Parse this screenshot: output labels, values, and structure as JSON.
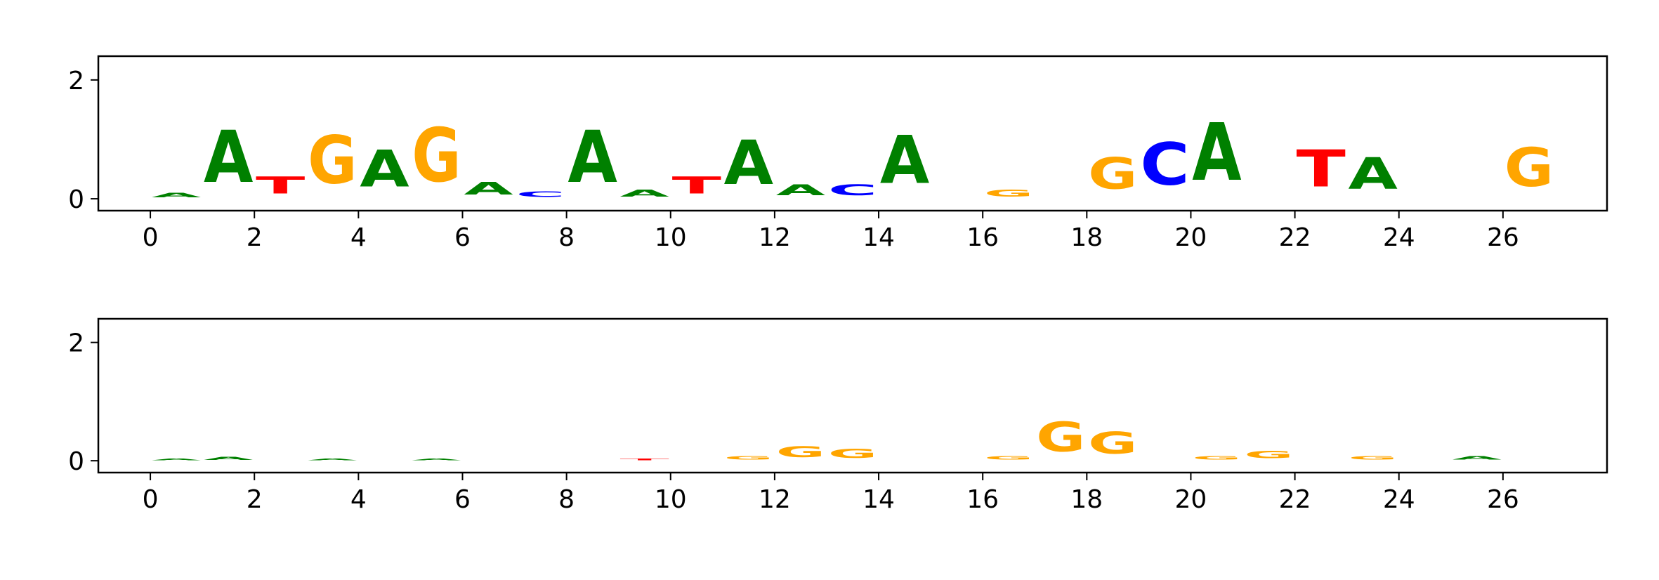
{
  "chart_data": [
    {
      "type": "sequence-logo",
      "title": "",
      "xlabel": "",
      "ylabel": "",
      "ylim": [
        -0.2,
        2.4
      ],
      "xlim": [
        -1,
        28
      ],
      "xticks": [
        "0",
        "2",
        "4",
        "6",
        "8",
        "10",
        "12",
        "14",
        "16",
        "18",
        "20",
        "22",
        "24",
        "26"
      ],
      "yticks": [
        "0",
        "2"
      ],
      "positions": [
        {
          "x": 0.5,
          "letters": [
            {
              "base": "A",
              "height": 0.12
            }
          ]
        },
        {
          "x": 1.5,
          "letters": [
            {
              "base": "A",
              "height": 1.4
            }
          ]
        },
        {
          "x": 2.5,
          "letters": [
            {
              "base": "T",
              "height": 0.45
            }
          ]
        },
        {
          "x": 3.5,
          "letters": [
            {
              "base": "G",
              "height": 1.3
            }
          ]
        },
        {
          "x": 4.5,
          "letters": [
            {
              "base": "A",
              "height": 1.0
            }
          ]
        },
        {
          "x": 5.5,
          "letters": [
            {
              "base": "G",
              "height": 1.45
            }
          ]
        },
        {
          "x": 6.5,
          "letters": [
            {
              "base": "A",
              "height": 0.35
            }
          ]
        },
        {
          "x": 7.5,
          "letters": [
            {
              "base": "C",
              "height": 0.15
            }
          ]
        },
        {
          "x": 8.5,
          "letters": [
            {
              "base": "A",
              "height": 1.4
            }
          ]
        },
        {
          "x": 9.5,
          "letters": [
            {
              "base": "A",
              "height": 0.18
            }
          ]
        },
        {
          "x": 10.5,
          "letters": [
            {
              "base": "T",
              "height": 0.45
            }
          ]
        },
        {
          "x": 11.5,
          "letters": [
            {
              "base": "A",
              "height": 1.2
            }
          ]
        },
        {
          "x": 12.5,
          "letters": [
            {
              "base": "A",
              "height": 0.3
            }
          ]
        },
        {
          "x": 13.5,
          "letters": [
            {
              "base": "C",
              "height": 0.3
            }
          ]
        },
        {
          "x": 14.5,
          "letters": [
            {
              "base": "A",
              "height": 1.3
            }
          ]
        },
        {
          "x": 16.5,
          "letters": [
            {
              "base": "G",
              "height": 0.18
            }
          ]
        },
        {
          "x": 18.5,
          "letters": [
            {
              "base": "G",
              "height": 0.85
            }
          ]
        },
        {
          "x": 19.5,
          "letters": [
            {
              "base": "C",
              "height": 1.15
            }
          ]
        },
        {
          "x": 20.5,
          "letters": [
            {
              "base": "A",
              "height": 1.55
            }
          ]
        },
        {
          "x": 22.5,
          "letters": [
            {
              "base": "T",
              "height": 1.0
            }
          ]
        },
        {
          "x": 23.5,
          "letters": [
            {
              "base": "A",
              "height": 0.85
            }
          ]
        },
        {
          "x": 26.5,
          "letters": [
            {
              "base": "G",
              "height": 1.05
            }
          ]
        }
      ]
    },
    {
      "type": "sequence-logo",
      "title": "",
      "xlabel": "",
      "ylabel": "",
      "ylim": [
        -0.2,
        2.4
      ],
      "xlim": [
        -1,
        28
      ],
      "xticks": [
        "0",
        "2",
        "4",
        "6",
        "8",
        "10",
        "12",
        "14",
        "16",
        "18",
        "20",
        "22",
        "24",
        "26"
      ],
      "yticks": [
        "0",
        "2"
      ],
      "positions": [
        {
          "x": 0.5,
          "letters": [
            {
              "base": "A",
              "height": 0.05
            }
          ]
        },
        {
          "x": 1.5,
          "letters": [
            {
              "base": "A",
              "height": 0.08
            }
          ]
        },
        {
          "x": 3.5,
          "letters": [
            {
              "base": "A",
              "height": 0.05
            }
          ]
        },
        {
          "x": 5.5,
          "letters": [
            {
              "base": "A",
              "height": 0.05
            }
          ]
        },
        {
          "x": 9.5,
          "letters": [
            {
              "base": "T",
              "height": 0.05
            }
          ]
        },
        {
          "x": 11.5,
          "letters": [
            {
              "base": "G",
              "height": 0.1
            }
          ]
        },
        {
          "x": 12.5,
          "letters": [
            {
              "base": "G",
              "height": 0.3
            }
          ]
        },
        {
          "x": 13.5,
          "letters": [
            {
              "base": "G",
              "height": 0.25
            }
          ]
        },
        {
          "x": 16.5,
          "letters": [
            {
              "base": "G",
              "height": 0.1
            }
          ]
        },
        {
          "x": 17.5,
          "letters": [
            {
              "base": "G",
              "height": 0.8
            }
          ]
        },
        {
          "x": 18.5,
          "letters": [
            {
              "base": "G",
              "height": 0.6
            }
          ]
        },
        {
          "x": 20.5,
          "letters": [
            {
              "base": "G",
              "height": 0.1
            }
          ]
        },
        {
          "x": 21.5,
          "letters": [
            {
              "base": "G",
              "height": 0.2
            }
          ]
        },
        {
          "x": 23.5,
          "letters": [
            {
              "base": "G",
              "height": 0.1
            }
          ]
        },
        {
          "x": 25.5,
          "letters": [
            {
              "base": "A",
              "height": 0.1
            }
          ]
        }
      ]
    }
  ],
  "colors": {
    "A": "#008000",
    "C": "#0000ff",
    "G": "#ffa500",
    "T": "#ff0000"
  }
}
